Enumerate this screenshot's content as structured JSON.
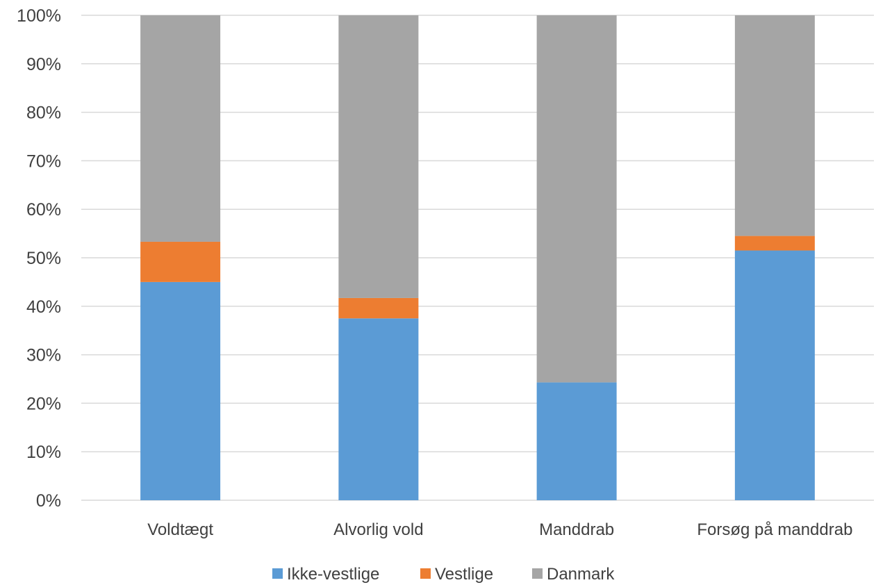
{
  "chart_data": {
    "type": "bar",
    "stacked": true,
    "categories": [
      "Voldtægt",
      "Alvorlig vold",
      "Manddrab",
      "Forsøg på manddrab"
    ],
    "series": [
      {
        "name": "Ikke-vestlige",
        "color": "#5B9BD5",
        "values": [
          45,
          37.5,
          24.3,
          51.5
        ]
      },
      {
        "name": "Vestlige",
        "color": "#ED7D31",
        "values": [
          8.3,
          4.2,
          0,
          3
        ]
      },
      {
        "name": "Danmark",
        "color": "#A5A5A5",
        "values": [
          46.7,
          58.3,
          75.7,
          45.5
        ]
      }
    ],
    "ylim": [
      0,
      100
    ],
    "yticks": [
      "0%",
      "10%",
      "20%",
      "30%",
      "40%",
      "50%",
      "60%",
      "70%",
      "80%",
      "90%",
      "100%"
    ],
    "grid": true,
    "legend": "bottom",
    "gridColor": "#d9d9d9"
  }
}
